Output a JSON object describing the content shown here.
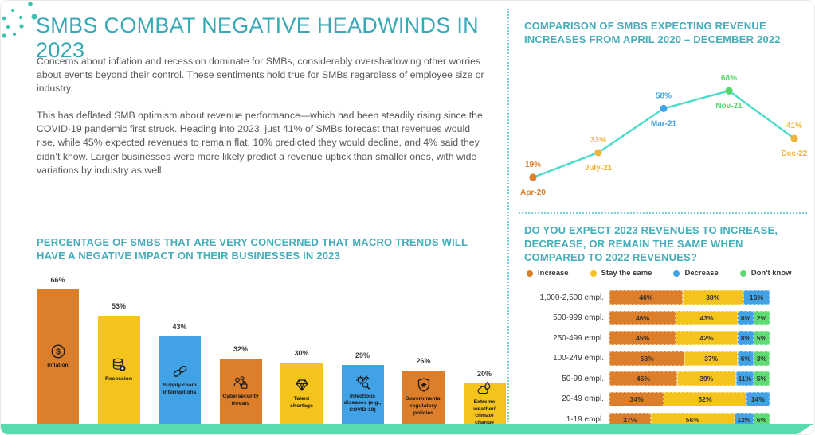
{
  "header": {
    "title": "SMBS COMBAT NEGATIVE HEADWINDS IN 2023"
  },
  "intro": {
    "p1": "Concerns about inflation and recession dominate for SMBs, considerably overshadowing other worries about events beyond their control. These sentiments hold true for SMBs regardless of employee size or industry.",
    "p2": "This has deflated SMB optimism about revenue performance—which had been steadily rising since the COVID-19 pandemic first struck. Heading into 2023, just 41% of SMBs forecast that revenues would rise, while 45% expected revenues to remain flat, 10% predicted they would decline, and 4% said they didn’t know. Larger businesses were more likely predict a revenue uptick than smaller ones, with wide variations by industry as well."
  },
  "colors": {
    "accent_teal": "#38a9b6",
    "orange": "#dd7e2b",
    "yellow": "#f4c41d",
    "blue": "#41a3e6",
    "green": "#5fdb74",
    "line_teal": "#4adcc8",
    "band_mint": "#58dbb0",
    "divider_teal": "#7ad0d8"
  },
  "chart_data": [
    {
      "type": "line",
      "title": "COMPARISON OF SMBS EXPECTING REVENUE INCREASES FROM APRIL 2020 – DECEMBER 2022",
      "x": [
        "Apr-20",
        "July-21",
        "Mar-21",
        "Nov-21",
        "Dec-22"
      ],
      "values": [
        19,
        33,
        58,
        68,
        41
      ],
      "unit": "%",
      "ylim": [
        0,
        100
      ],
      "grid": false,
      "line_color": "#4adcc8",
      "point_colors": [
        "#dd7e2b",
        "#f0b43a",
        "#41a3e6",
        "#55d668",
        "#f0b43a"
      ]
    },
    {
      "type": "bar",
      "title": "PERCENTAGE OF SMBS THAT ARE VERY CONCERNED THAT MACRO TRENDS WILL HAVE A NEGATIVE IMPACT ON THEIR BUSINESSES IN 2023",
      "categories": [
        "Inflation",
        "Recession",
        "Supply chain interruptions",
        "Cybersecurity threats",
        "Talent shortage",
        "Infectious diseases (e.g., COVID-19)",
        "Governmental regulatory policies",
        "Extreme weather/ climate change"
      ],
      "values": [
        66,
        53,
        43,
        32,
        30,
        29,
        26,
        20
      ],
      "unit": "%",
      "ylim": [
        0,
        70
      ],
      "grid": false,
      "bar_colors": [
        "#dd7e2b",
        "#f4c41d",
        "#41a3e6",
        "#dd7e2b",
        "#f4c41d",
        "#41a3e6",
        "#dd7e2b",
        "#f4c41d"
      ],
      "icons": [
        "dollar-coin-icon",
        "coins-decline-icon",
        "chain-link-icon",
        "cyber-lock-icon",
        "diamond-icon",
        "germ-icon",
        "shield-star-icon",
        "climate-icon"
      ]
    },
    {
      "type": "stacked-bar",
      "title": "DO YOU EXPECT 2023 REVENUES TO INCREASE, DECREASE, OR REMAIN THE SAME WHEN COMPARED TO 2022 REVENUES?",
      "legend_position": "top",
      "unit": "%",
      "categories": [
        "1,000-2,500 empl.",
        "500-999 empl.",
        "250-499 empl.",
        "100-249 empl.",
        "50-99 empl.",
        "20-49 empl.",
        "1-19 empl."
      ],
      "series": [
        {
          "name": "Increase",
          "color": "#dd7e2b",
          "values": [
            46,
            46,
            45,
            53,
            45,
            34,
            27
          ]
        },
        {
          "name": "Stay the same",
          "color": "#f4c41d",
          "values": [
            38,
            43,
            42,
            37,
            39,
            52,
            56
          ]
        },
        {
          "name": "Decrease",
          "color": "#41a3e6",
          "values": [
            16,
            8,
            8,
            6,
            11,
            14,
            12
          ]
        },
        {
          "name": "Don't know",
          "color": "#5fdb74",
          "values": [
            0,
            2,
            5,
            3,
            5,
            0,
            6
          ]
        }
      ]
    }
  ]
}
